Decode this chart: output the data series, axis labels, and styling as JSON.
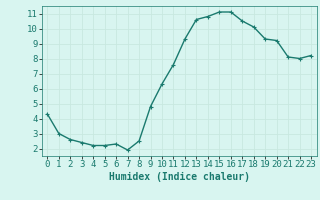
{
  "x": [
    0,
    1,
    2,
    3,
    4,
    5,
    6,
    7,
    8,
    9,
    10,
    11,
    12,
    13,
    14,
    15,
    16,
    17,
    18,
    19,
    20,
    21,
    22,
    23
  ],
  "y": [
    4.3,
    3.0,
    2.6,
    2.4,
    2.2,
    2.2,
    2.3,
    1.9,
    2.5,
    4.8,
    6.3,
    7.6,
    9.3,
    10.6,
    10.8,
    11.1,
    11.1,
    10.5,
    10.1,
    9.3,
    9.2,
    8.1,
    8.0,
    8.2
  ],
  "line_color": "#1a7a6e",
  "marker": "+",
  "marker_size": 3,
  "background_color": "#d8f5f0",
  "grid_color": "#c8e8e0",
  "xlabel": "Humidex (Indice chaleur)",
  "xlim": [
    -0.5,
    23.5
  ],
  "ylim": [
    1.5,
    11.5
  ],
  "yticks": [
    2,
    3,
    4,
    5,
    6,
    7,
    8,
    9,
    10,
    11
  ],
  "xticks": [
    0,
    1,
    2,
    3,
    4,
    5,
    6,
    7,
    8,
    9,
    10,
    11,
    12,
    13,
    14,
    15,
    16,
    17,
    18,
    19,
    20,
    21,
    22,
    23
  ],
  "xlabel_fontsize": 7,
  "tick_fontsize": 6.5,
  "line_width": 1.0
}
